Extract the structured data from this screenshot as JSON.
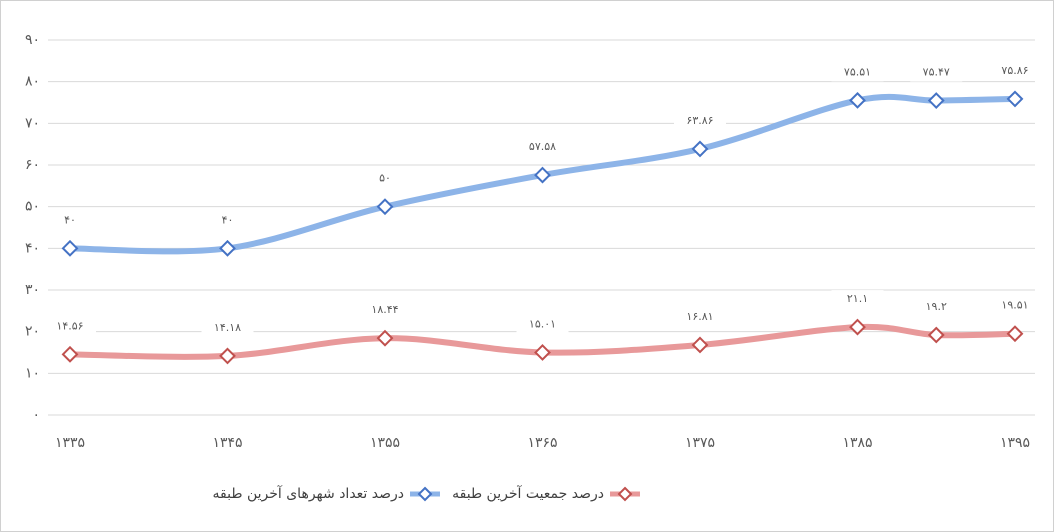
{
  "chart_data": {
    "type": "line",
    "x": [
      1335,
      1345,
      1355,
      1365,
      1375,
      1385,
      1390,
      1395
    ],
    "xlim": [
      1335,
      1395
    ],
    "xticks": [
      {
        "value": 1335,
        "label": "۱۳۳۵"
      },
      {
        "value": 1345,
        "label": "۱۳۴۵"
      },
      {
        "value": 1355,
        "label": "۱۳۵۵"
      },
      {
        "value": 1365,
        "label": "۱۳۶۵"
      },
      {
        "value": 1375,
        "label": "۱۳۷۵"
      },
      {
        "value": 1385,
        "label": "۱۳۸۵"
      },
      {
        "value": 1395,
        "label": "۱۳۹۵"
      }
    ],
    "ylim": [
      0,
      90
    ],
    "yticks": [
      {
        "value": 0,
        "label": "۰"
      },
      {
        "value": 10,
        "label": "۱۰"
      },
      {
        "value": 20,
        "label": "۲۰"
      },
      {
        "value": 30,
        "label": "۳۰"
      },
      {
        "value": 40,
        "label": "۴۰"
      },
      {
        "value": 50,
        "label": "۵۰"
      },
      {
        "value": 60,
        "label": "۶۰"
      },
      {
        "value": 70,
        "label": "۷۰"
      },
      {
        "value": 80,
        "label": "۸۰"
      },
      {
        "value": 90,
        "label": "۹۰"
      }
    ],
    "grid": true,
    "legend": "bottom",
    "series": [
      {
        "name": "درصد تعداد شهرهای آخرین طبقه",
        "color": "#8db4e8",
        "marker_color": "#4472c4",
        "values": [
          40,
          40,
          50,
          57.58,
          63.86,
          75.51,
          75.47,
          75.86
        ],
        "value_labels": [
          "۴۰",
          "۴۰",
          "۵۰",
          "۵۷.۵۸",
          "۶۳.۸۶",
          "۷۵.۵۱",
          "۷۵.۴۷",
          "۷۵.۸۶"
        ]
      },
      {
        "name": "درصد جمعیت آخرین طبقه",
        "color": "#e8999a",
        "marker_color": "#c0504d",
        "values": [
          14.56,
          14.18,
          18.44,
          15.01,
          16.81,
          21.1,
          19.2,
          19.51
        ],
        "value_labels": [
          "۱۴.۵۶",
          "۱۴.۱۸",
          "۱۸.۴۴",
          "۱۵.۰۱",
          "۱۶.۸۱",
          "۲۱.۱",
          "۱۹.۲",
          "۱۹.۵۱"
        ]
      }
    ]
  }
}
